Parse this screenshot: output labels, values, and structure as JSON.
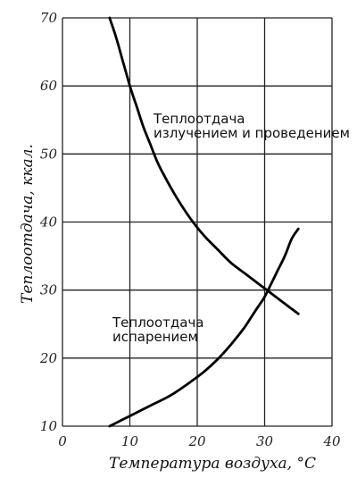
{
  "chart_data": {
    "type": "line",
    "title": "",
    "xlabel": "Температура воздуха, °С",
    "ylabel": "Теплоотдача, ккал.",
    "xlim": [
      0,
      40
    ],
    "y_ticks": [
      "10",
      "20",
      "30",
      "40",
      "50",
      "60",
      "70"
    ],
    "y_tick_positions": [
      10,
      20,
      30,
      40,
      50,
      60,
      70
    ],
    "x_ticks": [
      "0",
      "10",
      "20",
      "30",
      "40"
    ],
    "x_tick_positions": [
      0,
      10,
      20,
      30,
      40
    ],
    "ylim": [
      10,
      70
    ],
    "grid": true,
    "series": [
      {
        "name": "Теплоотдача излучением и проведением",
        "x": [
          7,
          8,
          9,
          10,
          11,
          12,
          13,
          14,
          15,
          17,
          19,
          21,
          23,
          25,
          27,
          29,
          31,
          33,
          35
        ],
        "y": [
          70,
          67,
          63.5,
          60,
          57,
          54,
          51.5,
          49,
          47,
          43.5,
          40.5,
          38,
          36,
          34,
          32.5,
          31,
          29.5,
          28,
          26.5
        ]
      },
      {
        "name": "Теплоотдача испарением",
        "x": [
          7,
          10,
          13,
          16,
          19,
          21,
          23,
          25,
          27,
          28,
          29,
          30,
          31,
          32,
          33,
          34,
          35
        ],
        "y": [
          10,
          11.5,
          13,
          14.5,
          16.5,
          18,
          19.8,
          22,
          24.5,
          26,
          27.5,
          29,
          31,
          33,
          35,
          37.5,
          39
        ]
      }
    ],
    "annotations": [
      {
        "lines": [
          "Теплоотдача",
          "излучением и проведением"
        ]
      },
      {
        "lines": [
          "Теплоотдача",
          "испарением"
        ]
      }
    ]
  }
}
